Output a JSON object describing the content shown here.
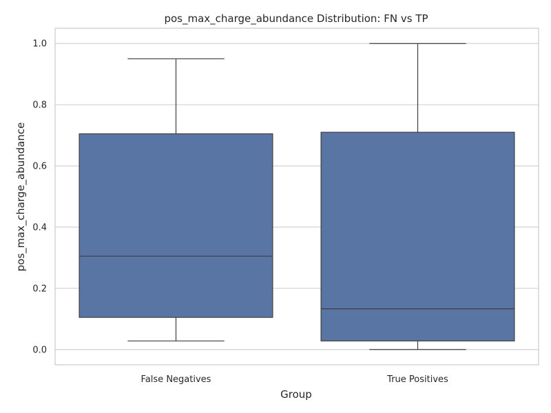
{
  "chart_data": {
    "type": "box",
    "title": "pos_max_charge_abundance Distribution: FN vs TP",
    "xlabel": "Group",
    "ylabel": "pos_max_charge_abundance",
    "ylim": [
      -0.05,
      1.05
    ],
    "yticks": [
      0.0,
      0.2,
      0.4,
      0.6,
      0.8,
      1.0
    ],
    "ytick_labels": [
      "0.0",
      "0.2",
      "0.4",
      "0.6",
      "0.8",
      "1.0"
    ],
    "grid": true,
    "box_color": "#5975a4",
    "categories": [
      "False Negatives",
      "True Positives"
    ],
    "boxes": [
      {
        "category": "False Negatives",
        "whisker_low": 0.028,
        "q1": 0.105,
        "median": 0.305,
        "q3": 0.705,
        "whisker_high": 0.95
      },
      {
        "category": "True Positives",
        "whisker_low": 0.0,
        "q1": 0.028,
        "median": 0.133,
        "q3": 0.71,
        "whisker_high": 1.0
      }
    ]
  }
}
